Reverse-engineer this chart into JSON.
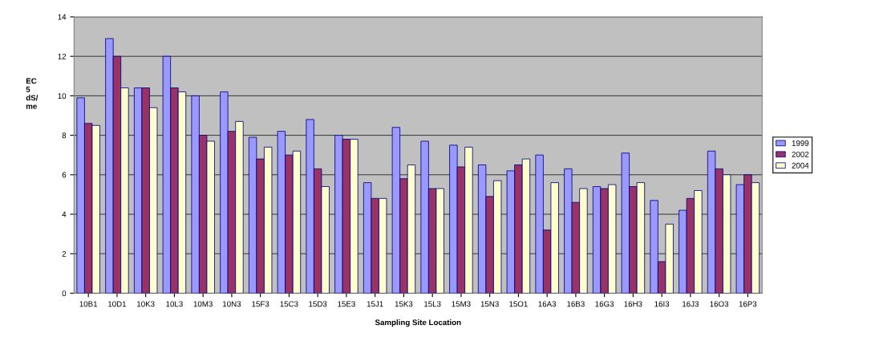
{
  "chart_data": {
    "type": "bar",
    "xlabel": "Sampling Site Location",
    "ylabel": "EC\n5\ndS/\nme",
    "categories": [
      "10B1",
      "10D1",
      "10K3",
      "10L3",
      "10M3",
      "10N3",
      "15F3",
      "15C3",
      "15D3",
      "15E3",
      "15J1",
      "15K3",
      "15L3",
      "15M3",
      "15N3",
      "15O1",
      "16A3",
      "16B3",
      "16G3",
      "16H3",
      "16I3",
      "16J3",
      "16O3",
      "16P3"
    ],
    "series": [
      {
        "name": "1999",
        "color": "#9999ff",
        "values": [
          9.9,
          12.9,
          10.4,
          12.0,
          10.0,
          10.2,
          7.9,
          8.2,
          8.8,
          8.0,
          5.6,
          8.4,
          7.7,
          7.5,
          6.5,
          6.2,
          7.0,
          6.3,
          5.4,
          7.1,
          4.7,
          4.2,
          7.2,
          5.5
        ]
      },
      {
        "name": "2002",
        "color": "#993366",
        "values": [
          8.6,
          12.0,
          10.4,
          10.4,
          8.0,
          8.2,
          6.8,
          7.0,
          6.3,
          7.8,
          4.8,
          5.8,
          5.3,
          6.4,
          4.9,
          6.5,
          3.2,
          4.6,
          5.3,
          5.4,
          1.6,
          4.8,
          6.3,
          6.0
        ]
      },
      {
        "name": "2004",
        "color": "#ffffcc",
        "values": [
          8.5,
          10.4,
          9.4,
          10.2,
          7.7,
          8.7,
          7.4,
          7.2,
          5.4,
          7.8,
          4.8,
          6.5,
          5.3,
          7.4,
          5.7,
          6.8,
          5.6,
          5.3,
          5.5,
          5.6,
          3.5,
          5.2,
          6.0,
          5.6
        ]
      }
    ],
    "ylim": [
      0,
      14
    ],
    "yticks": [
      0,
      2,
      4,
      6,
      8,
      10,
      12,
      14
    ],
    "grid": "y",
    "legend": "right"
  }
}
